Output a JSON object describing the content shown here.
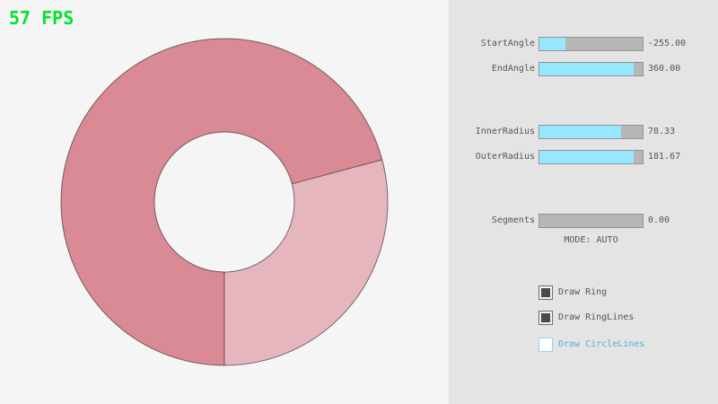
{
  "colors": {
    "background": "#f5f5f5",
    "panel_background": "#e4e4e4",
    "fps_green": "#00e430",
    "slider_fill_cyan": "#97e8ff",
    "accent_blue": "#55aed8"
  },
  "fps": {
    "text": "57 FPS"
  },
  "ring": {
    "base_color": "#d98a94",
    "single_pass_color": "#e6b6bf",
    "hole_color": "#f5f5f5",
    "line_color": "rgba(0,0,0,0.5)"
  },
  "panel": {
    "sliders": [
      {
        "label": "StartAngle",
        "value": "-255.00",
        "fill_pct": 25
      },
      {
        "label": "EndAngle",
        "value": "360.00",
        "fill_pct": 91
      },
      {
        "label": "InnerRadius",
        "value": "78.33",
        "fill_pct": 79
      },
      {
        "label": "OuterRadius",
        "value": "181.67",
        "fill_pct": 91
      },
      {
        "label": "Segments",
        "value": "0.00",
        "fill_pct": 0
      }
    ],
    "mode_text": "MODE: AUTO",
    "checkboxes": [
      {
        "label": "Draw Ring",
        "checked": true,
        "accent": false
      },
      {
        "label": "Draw RingLines",
        "checked": true,
        "accent": false
      },
      {
        "label": "Draw CircleLines",
        "checked": false,
        "accent": true
      }
    ]
  }
}
